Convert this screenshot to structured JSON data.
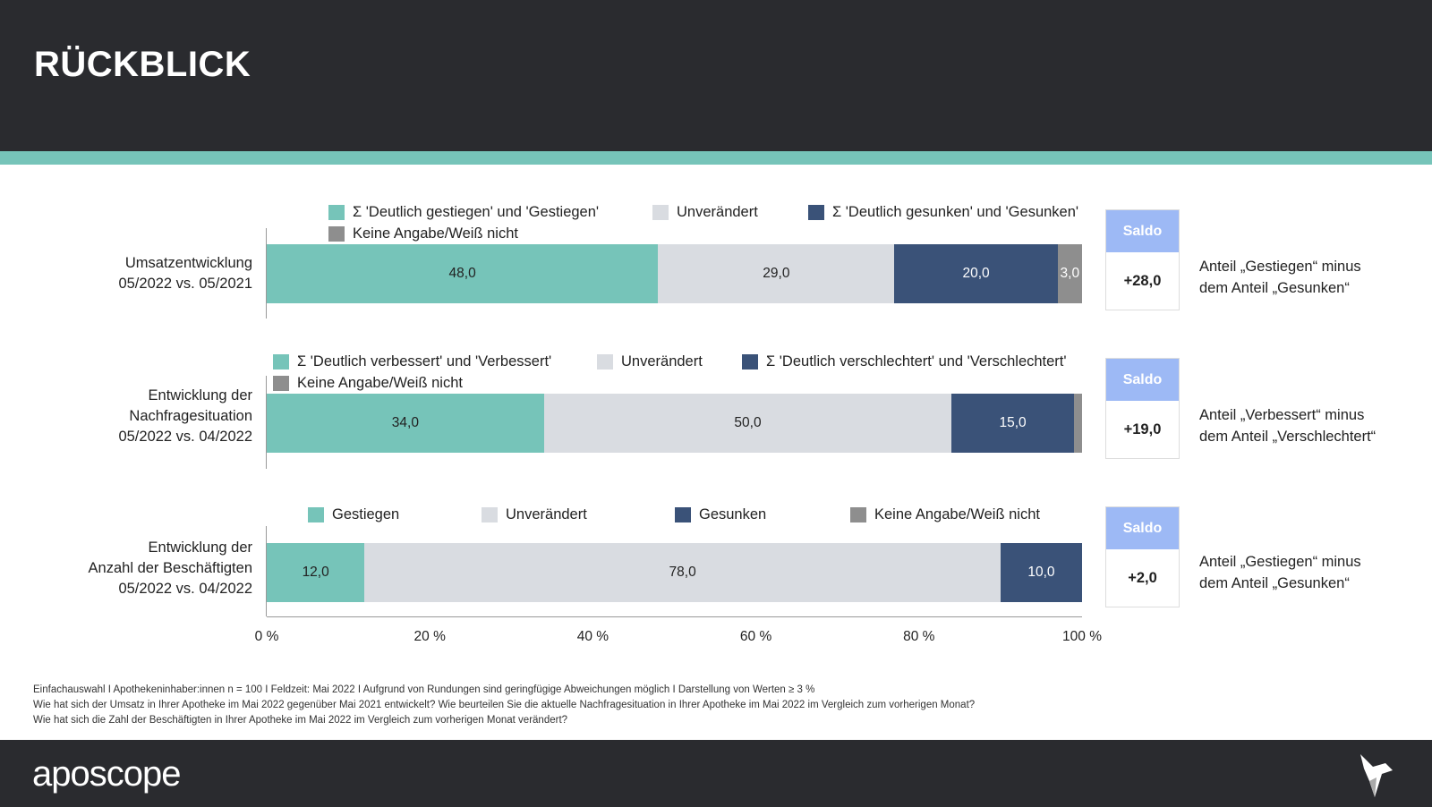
{
  "header": {
    "title": "RÜCKBLICK"
  },
  "colors": {
    "up": "#76c4b9",
    "same": "#d9dce1",
    "down": "#3a5278",
    "na": "#8e8e8e",
    "saldo": "#9db9f5"
  },
  "chart_data": [
    {
      "type": "bar",
      "stacked": true,
      "orientation": "horizontal",
      "category": "Umsatzentwicklung 05/2022 vs. 05/2021",
      "category_lines": [
        "Umsatzentwicklung",
        "05/2022 vs. 05/2021"
      ],
      "legend": [
        "Σ 'Deutlich gestiegen' und 'Gestiegen'",
        "Unverändert",
        "Σ 'Deutlich gesunken' und 'Gesunken'",
        "Keine Angabe/Weiß nicht"
      ],
      "values": [
        48.0,
        29.0,
        20.0,
        3.0
      ],
      "labels": [
        "48,0",
        "29,0",
        "20,0",
        "3,0"
      ],
      "saldo": "+28,0",
      "saldo_desc": [
        "Anteil „Gestiegen“ minus",
        "dem Anteil „Gesunken“"
      ]
    },
    {
      "type": "bar",
      "stacked": true,
      "orientation": "horizontal",
      "category": "Entwicklung der Nachfragesituation 05/2022 vs. 04/2022",
      "category_lines": [
        "Entwicklung der",
        "Nachfragesituation",
        "05/2022 vs. 04/2022"
      ],
      "legend": [
        "Σ 'Deutlich verbessert' und 'Verbessert'",
        "Unverändert",
        "Σ 'Deutlich verschlechtert' und 'Verschlechtert'",
        "Keine Angabe/Weiß nicht"
      ],
      "values": [
        34.0,
        50.0,
        15.0,
        1.0
      ],
      "labels": [
        "34,0",
        "50,0",
        "15,0",
        ""
      ],
      "saldo": "+19,0",
      "saldo_desc": [
        "Anteil „Verbessert“ minus",
        "dem Anteil „Verschlechtert“"
      ]
    },
    {
      "type": "bar",
      "stacked": true,
      "orientation": "horizontal",
      "category": "Entwicklung der Anzahl der Beschäftigten 05/2022 vs. 04/2022",
      "category_lines": [
        "Entwicklung der",
        "Anzahl der Beschäftigten",
        "05/2022 vs. 04/2022"
      ],
      "legend": [
        "Gestiegen",
        "Unverändert",
        "Gesunken",
        "Keine Angabe/Weiß nicht"
      ],
      "values": [
        12.0,
        78.0,
        10.0,
        0
      ],
      "labels": [
        "12,0",
        "78,0",
        "10,0",
        ""
      ],
      "saldo": "+2,0",
      "saldo_desc": [
        "Anteil „Gestiegen“ minus",
        "dem Anteil „Gesunken“"
      ]
    }
  ],
  "axis": {
    "xlim": [
      0,
      100
    ],
    "ticks": [
      "0 %",
      "20 %",
      "40 %",
      "60 %",
      "80 %",
      "100 %"
    ]
  },
  "saldo_label": "Saldo",
  "footnotes": [
    "Einfachauswahl I Apothekeninhaber:innen n = 100 I Feldzeit: Mai 2022 I Aufgrund von Rundungen sind geringfügige Abweichungen möglich I Darstellung von Werten ≥ 3 %",
    "Wie hat sich der Umsatz in Ihrer Apotheke im Mai 2022 gegenüber Mai 2021 entwickelt? Wie beurteilen Sie die aktuelle Nachfragesituation in Ihrer Apotheke im Mai 2022 im Vergleich zum vorherigen Monat?",
    "Wie hat sich die Zahl der Beschäftigten in Ihrer Apotheke im Mai 2022 im Vergleich zum vorherigen Monat verändert?"
  ],
  "footer": {
    "logo": "aposcope"
  }
}
